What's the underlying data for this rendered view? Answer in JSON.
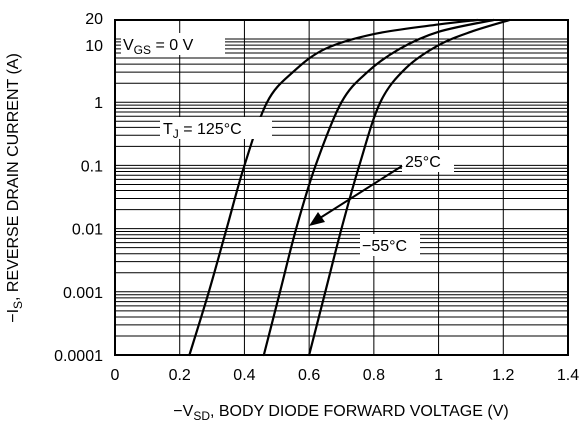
{
  "chart_data": {
    "type": "line",
    "title": "",
    "xlabel": {
      "prefix": "−V",
      "sub": "SD",
      "suffix": ", BODY DIODE FORWARD VOLTAGE (V)"
    },
    "ylabel": {
      "prefix": "−I",
      "sub": "S",
      "suffix": ", REVERSE DRAIN CURRENT (A)"
    },
    "xlim": [
      0,
      1.4
    ],
    "ylim": [
      0.0001,
      20
    ],
    "yscale": "log",
    "grid": true,
    "x_ticks": [
      0,
      0.2,
      0.4,
      0.6,
      0.8,
      1,
      1.2,
      1.4
    ],
    "x_tick_labels": [
      "0",
      "0.2",
      "0.4",
      "0.6",
      "0.8",
      "1",
      "1.2",
      "1.4"
    ],
    "y_ticks": [
      0.0001,
      0.001,
      0.01,
      0.1,
      1,
      10,
      20
    ],
    "y_tick_labels": [
      "0.0001",
      "0.001",
      "0.01",
      "0.1",
      "1",
      "10",
      "20"
    ],
    "series": [
      {
        "points": [
          [
            0.23,
            0.0001
          ],
          [
            0.29,
            0.001
          ],
          [
            0.345,
            0.01
          ],
          [
            0.4,
            0.1
          ],
          [
            0.47,
            1
          ],
          [
            0.55,
            3
          ],
          [
            0.65,
            7
          ],
          [
            0.8,
            12
          ],
          [
            1.0,
            17
          ],
          [
            1.12,
            20
          ]
        ]
      },
      {
        "points": [
          [
            0.46,
            0.0001
          ],
          [
            0.51,
            0.001
          ],
          [
            0.56,
            0.01
          ],
          [
            0.62,
            0.1
          ],
          [
            0.7,
            1
          ],
          [
            0.78,
            3
          ],
          [
            0.88,
            7
          ],
          [
            1.0,
            13
          ],
          [
            1.17,
            20
          ]
        ]
      },
      {
        "points": [
          [
            0.6,
            0.0001
          ],
          [
            0.65,
            0.001
          ],
          [
            0.7,
            0.01
          ],
          [
            0.755,
            0.1
          ],
          [
            0.82,
            1
          ],
          [
            0.9,
            3.5
          ],
          [
            1.0,
            8
          ],
          [
            1.1,
            13
          ],
          [
            1.22,
            20
          ]
        ]
      }
    ],
    "annotations": {
      "vgs": {
        "prefix": "V",
        "sub": "GS",
        "suffix": " = 0 V"
      },
      "tj": {
        "prefix": "T",
        "sub": "J",
        "suffix": " = 125°C"
      },
      "t25": "25°C",
      "t55": "−55°C"
    }
  }
}
